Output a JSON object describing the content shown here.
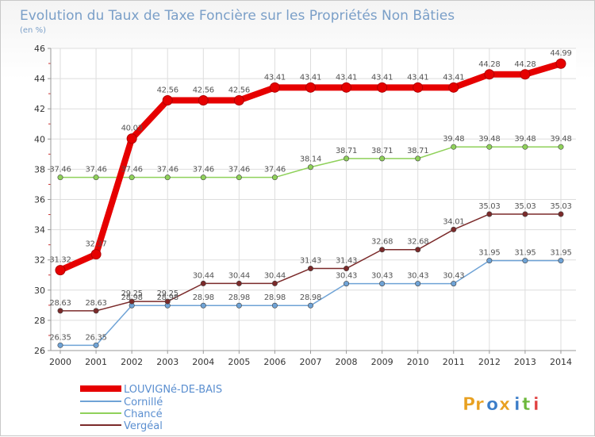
{
  "chart_data": {
    "type": "line",
    "title": "Evolution du Taux de Taxe Foncière sur les Propriétés Non Bâties",
    "subtitle": "(en %)",
    "xlabel": "",
    "ylabel": "",
    "categories": [
      "2000",
      "2001",
      "2002",
      "2003",
      "2004",
      "2005",
      "2006",
      "2007",
      "2008",
      "2009",
      "2010",
      "2011",
      "2012",
      "2013",
      "2014"
    ],
    "yticks": [
      "26",
      "28",
      "30",
      "32",
      "34",
      "36",
      "38",
      "40",
      "42",
      "44",
      "46"
    ],
    "ylim": [
      26,
      46
    ],
    "grid": true,
    "legend_position": "bottom-left",
    "series": [
      {
        "name": "LOUVIGNé-DE-BAIS",
        "color": "#e60000",
        "values": [
          31.32,
          32.37,
          40.03,
          42.56,
          42.56,
          42.56,
          43.41,
          43.41,
          43.41,
          43.41,
          43.41,
          43.41,
          44.28,
          44.28,
          44.99
        ],
        "labels": [
          "31.32",
          "32.37",
          "40.03",
          "42.56",
          "42.56",
          "42.56",
          "43.41",
          "43.41",
          "43.41",
          "43.41",
          "43.41",
          "43.41",
          "44.28",
          "44.28",
          "44.99"
        ]
      },
      {
        "name": "Cornillé",
        "color": "#6fa3d6",
        "values": [
          26.35,
          26.35,
          28.98,
          28.98,
          28.98,
          28.98,
          28.98,
          28.98,
          30.43,
          30.43,
          30.43,
          30.43,
          31.95,
          31.95,
          31.95
        ],
        "labels": [
          "26.35",
          "26.35",
          "28.98",
          "28.98",
          "28.98",
          "28.98",
          "28.98",
          "28.98",
          "30.43",
          "30.43",
          "30.43",
          "30.43",
          "31.95",
          "31.95",
          "31.95"
        ]
      },
      {
        "name": "Chancé",
        "color": "#8fd15a",
        "values": [
          37.46,
          37.46,
          37.46,
          37.46,
          37.46,
          37.46,
          37.46,
          38.14,
          38.71,
          38.71,
          38.71,
          39.48,
          39.48,
          39.48,
          39.48
        ],
        "labels": [
          "37.46",
          "37.46",
          "37.46",
          "37.46",
          "37.46",
          "37.46",
          "37.46",
          "38.14",
          "38.71",
          "38.71",
          "38.71",
          "39.48",
          "39.48",
          "39.48",
          "39.48"
        ]
      },
      {
        "name": "Vergéal",
        "color": "#7b2a2a",
        "values": [
          28.63,
          28.63,
          29.25,
          29.25,
          30.44,
          30.44,
          30.44,
          31.43,
          31.43,
          32.68,
          32.68,
          34.01,
          35.03,
          35.03,
          35.03
        ],
        "labels": [
          "28.63",
          "28.63",
          "29.25",
          "29.25",
          "30.44",
          "30.44",
          "30.44",
          "31.43",
          "31.43",
          "32.68",
          "32.68",
          "34.01",
          "35.03",
          "35.03",
          "35.03"
        ]
      }
    ]
  },
  "logo": {
    "text": "Proxiti",
    "letters": [
      "P",
      "r",
      "o",
      "x",
      "i",
      "t",
      "i"
    ],
    "colors": [
      "#e8a020",
      "#e8a020",
      "#3a7cc8",
      "#e8a020",
      "#3a7cc8",
      "#6cb83a",
      "#e04040"
    ]
  }
}
